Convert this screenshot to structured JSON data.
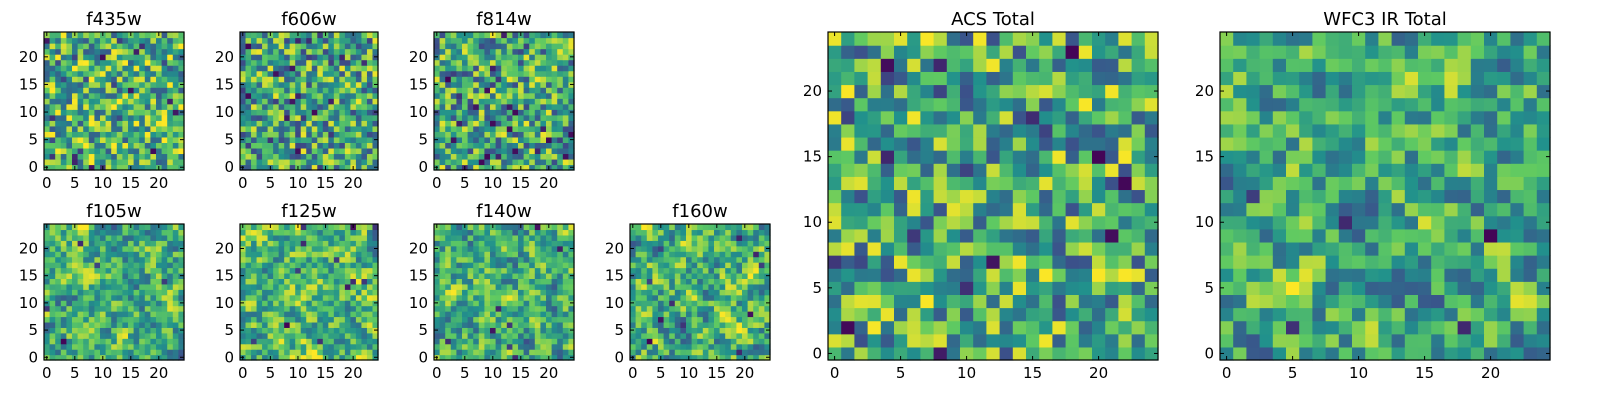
{
  "chart_data": {
    "type": "heatmap",
    "colormap": [
      "#440154",
      "#3b528b",
      "#21918c",
      "#5ec962",
      "#fde725"
    ],
    "panels": [
      {
        "name": "f435w",
        "title": "f435w",
        "grid_size": 25,
        "xlim": [
          0,
          24
        ],
        "ylim": [
          0,
          24
        ],
        "xticks": [
          0,
          5,
          10,
          15,
          20
        ],
        "yticks": [
          0,
          5,
          10,
          15,
          20
        ],
        "seed": 11,
        "smoothing": 0,
        "dark_fraction": 0.03,
        "base": 0.66
      },
      {
        "name": "f606w",
        "title": "f606w",
        "grid_size": 25,
        "xlim": [
          0,
          24
        ],
        "ylim": [
          0,
          24
        ],
        "xticks": [
          0,
          5,
          10,
          15,
          20
        ],
        "yticks": [
          0,
          5,
          10,
          15,
          20
        ],
        "seed": 23,
        "smoothing": 0,
        "dark_fraction": 0.05,
        "base": 0.6
      },
      {
        "name": "f814w",
        "title": "f814w",
        "grid_size": 25,
        "xlim": [
          0,
          24
        ],
        "ylim": [
          0,
          24
        ],
        "xticks": [
          0,
          5,
          10,
          15,
          20
        ],
        "yticks": [
          0,
          5,
          10,
          15,
          20
        ],
        "seed": 37,
        "smoothing": 0,
        "dark_fraction": 0.05,
        "base": 0.6
      },
      {
        "name": "f105w",
        "title": "f105w",
        "grid_size": 25,
        "xlim": [
          0,
          24
        ],
        "ylim": [
          0,
          24
        ],
        "xticks": [
          0,
          5,
          10,
          15,
          20
        ],
        "yticks": [
          0,
          5,
          10,
          15,
          20
        ],
        "seed": 41,
        "smoothing": 1,
        "dark_fraction": 0.02,
        "base": 0.64
      },
      {
        "name": "f125w",
        "title": "f125w",
        "grid_size": 25,
        "xlim": [
          0,
          24
        ],
        "ylim": [
          0,
          24
        ],
        "xticks": [
          0,
          5,
          10,
          15,
          20
        ],
        "yticks": [
          0,
          5,
          10,
          15,
          20
        ],
        "seed": 53,
        "smoothing": 1,
        "dark_fraction": 0.02,
        "base": 0.66
      },
      {
        "name": "f140w",
        "title": "f140w",
        "grid_size": 25,
        "xlim": [
          0,
          24
        ],
        "ylim": [
          0,
          24
        ],
        "xticks": [
          0,
          5,
          10,
          15,
          20
        ],
        "yticks": [
          0,
          5,
          10,
          15,
          20
        ],
        "seed": 67,
        "smoothing": 1,
        "dark_fraction": 0.02,
        "base": 0.62
      },
      {
        "name": "f160w",
        "title": "f160w",
        "grid_size": 25,
        "xlim": [
          0,
          24
        ],
        "ylim": [
          0,
          24
        ],
        "xticks": [
          0,
          5,
          10,
          15,
          20
        ],
        "yticks": [
          0,
          5,
          10,
          15,
          20
        ],
        "seed": 79,
        "smoothing": 1,
        "dark_fraction": 0.02,
        "base": 0.64
      },
      {
        "name": "acs-total",
        "title": "ACS Total",
        "grid_size": 25,
        "xlim": [
          0,
          24
        ],
        "ylim": [
          0,
          24
        ],
        "xticks": [
          0,
          5,
          10,
          15,
          20
        ],
        "yticks": [
          0,
          5,
          10,
          15,
          20
        ],
        "seed": 97,
        "smoothing": 0,
        "dark_fraction": 0.03,
        "base": 0.62
      },
      {
        "name": "wfc3-ir-total",
        "title": "WFC3 IR Total",
        "grid_size": 25,
        "xlim": [
          0,
          24
        ],
        "ylim": [
          0,
          24
        ],
        "xticks": [
          0,
          5,
          10,
          15,
          20
        ],
        "yticks": [
          0,
          5,
          10,
          15,
          20
        ],
        "seed": 131,
        "smoothing": 1,
        "dark_fraction": 0.02,
        "base": 0.64
      }
    ]
  }
}
